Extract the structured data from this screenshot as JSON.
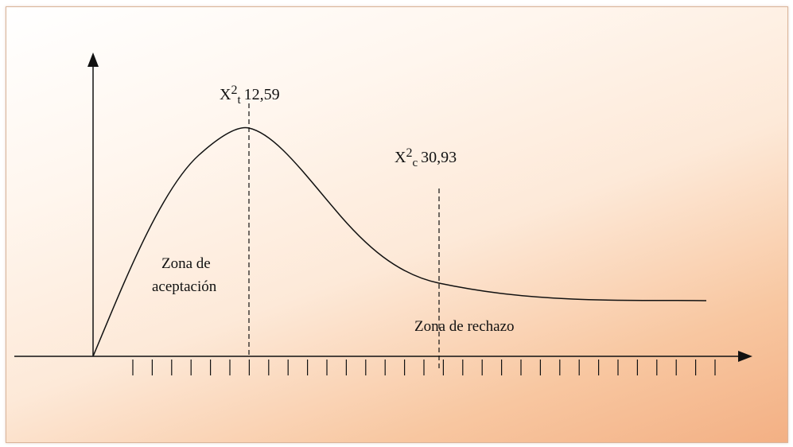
{
  "chart_data": {
    "type": "line",
    "title": "",
    "xlabel": "",
    "ylabel": "",
    "annotations": {
      "table_value": {
        "symbol": "X",
        "superscript": "2",
        "subscript": "t",
        "value": "12,59"
      },
      "computed_value": {
        "symbol": "X",
        "superscript": "2",
        "subscript": "c",
        "value": "30,93"
      }
    },
    "zones": {
      "acceptance": [
        "Zona de",
        "aceptación"
      ],
      "rejection": "Zona de rechazo"
    },
    "colors": {
      "line": "#111111",
      "background_light": "#ffffff",
      "background_dark": "#f3b084"
    }
  }
}
